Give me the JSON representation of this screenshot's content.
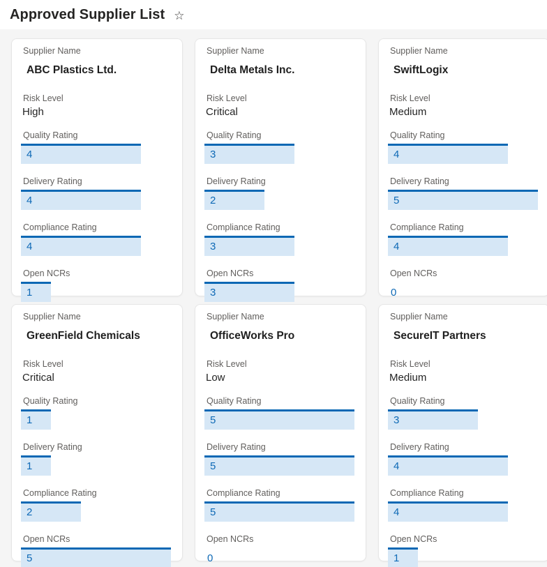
{
  "header": {
    "title": "Approved Supplier List",
    "star_icon": "☆"
  },
  "field_labels": {
    "supplier_name": "Supplier Name",
    "risk_level": "Risk Level",
    "quality_rating": "Quality Rating",
    "delivery_rating": "Delivery Rating",
    "compliance_rating": "Compliance Rating",
    "open_ncrs": "Open NCRs"
  },
  "rating_scale_max": 5,
  "colors": {
    "accent_blue": "#0a68b4",
    "bar_fill": "#d6e7f6",
    "value_text": "#0f6ab6",
    "label_gray": "#605e5c",
    "text_dark": "#242424",
    "gallery_background": "#f5f5f5",
    "card_background": "#ffffff",
    "card_border": "#e6e6e6"
  },
  "suppliers": [
    {
      "name": "ABC Plastics Ltd.",
      "risk_level": "High",
      "quality_rating": 4,
      "delivery_rating": 4,
      "compliance_rating": 4,
      "open_ncrs": 1
    },
    {
      "name": "Delta Metals Inc.",
      "risk_level": "Critical",
      "quality_rating": 3,
      "delivery_rating": 2,
      "compliance_rating": 3,
      "open_ncrs": 3
    },
    {
      "name": "SwiftLogix",
      "risk_level": "Medium",
      "quality_rating": 4,
      "delivery_rating": 5,
      "compliance_rating": 4,
      "open_ncrs": 0
    },
    {
      "name": "GreenField Chemicals",
      "risk_level": "Critical",
      "quality_rating": 1,
      "delivery_rating": 1,
      "compliance_rating": 2,
      "open_ncrs": 5
    },
    {
      "name": "OfficeWorks Pro",
      "risk_level": "Low",
      "quality_rating": 5,
      "delivery_rating": 5,
      "compliance_rating": 5,
      "open_ncrs": 0
    },
    {
      "name": "SecureIT Partners",
      "risk_level": "Medium",
      "quality_rating": 3,
      "delivery_rating": 4,
      "compliance_rating": 4,
      "open_ncrs": 1
    }
  ]
}
